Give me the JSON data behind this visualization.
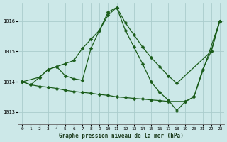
{
  "title": "Graphe pression niveau de la mer (hPa)",
  "bg_color": "#cce8e8",
  "grid_color": "#aacccc",
  "line_color": "#1a5c1a",
  "marker": "D",
  "markersize": 2.5,
  "linewidth": 0.9,
  "xlim": [
    -0.5,
    23.5
  ],
  "ylim": [
    1012.6,
    1016.6
  ],
  "yticks": [
    1013,
    1014,
    1015,
    1016
  ],
  "xticks": [
    0,
    1,
    2,
    3,
    4,
    5,
    6,
    7,
    8,
    9,
    10,
    11,
    12,
    13,
    14,
    15,
    16,
    17,
    18,
    19,
    20,
    21,
    22,
    23
  ],
  "series": [
    {
      "x": [
        0,
        1,
        2,
        3,
        4,
        5,
        6,
        7,
        8,
        9,
        10,
        11,
        12,
        13,
        14,
        15,
        16,
        17,
        18,
        19,
        20,
        21,
        22,
        23
      ],
      "y": [
        1014.0,
        1013.9,
        1014.15,
        1014.4,
        1014.5,
        1014.2,
        1014.1,
        1014.05,
        1015.1,
        1015.7,
        1016.3,
        1016.45,
        1015.7,
        1015.15,
        1014.6,
        1014.0,
        1013.65,
        1013.4,
        1013.05,
        1013.35,
        1013.5,
        1014.4,
        1015.0,
        1016.0
      ]
    },
    {
      "x": [
        0,
        2,
        3,
        4,
        5,
        6,
        7,
        8,
        9,
        10,
        11,
        12,
        13,
        14,
        15,
        16,
        17,
        18,
        22,
        23
      ],
      "y": [
        1014.0,
        1014.15,
        1014.4,
        1014.5,
        1014.6,
        1014.7,
        1015.1,
        1015.4,
        1015.7,
        1016.2,
        1016.45,
        1015.95,
        1015.55,
        1015.15,
        1014.8,
        1014.5,
        1014.2,
        1013.95,
        1015.0,
        1016.0
      ]
    },
    {
      "x": [
        0,
        1,
        2,
        3,
        4,
        5,
        6,
        7,
        8,
        9,
        10,
        11,
        12,
        13,
        14,
        15,
        16,
        17,
        19,
        20,
        23
      ],
      "y": [
        1014.0,
        1013.9,
        1013.85,
        1013.82,
        1013.78,
        1013.72,
        1013.68,
        1013.65,
        1013.62,
        1013.58,
        1013.55,
        1013.5,
        1013.48,
        1013.45,
        1013.43,
        1013.4,
        1013.38,
        1013.35,
        1013.35,
        1013.5,
        1016.0
      ]
    }
  ]
}
